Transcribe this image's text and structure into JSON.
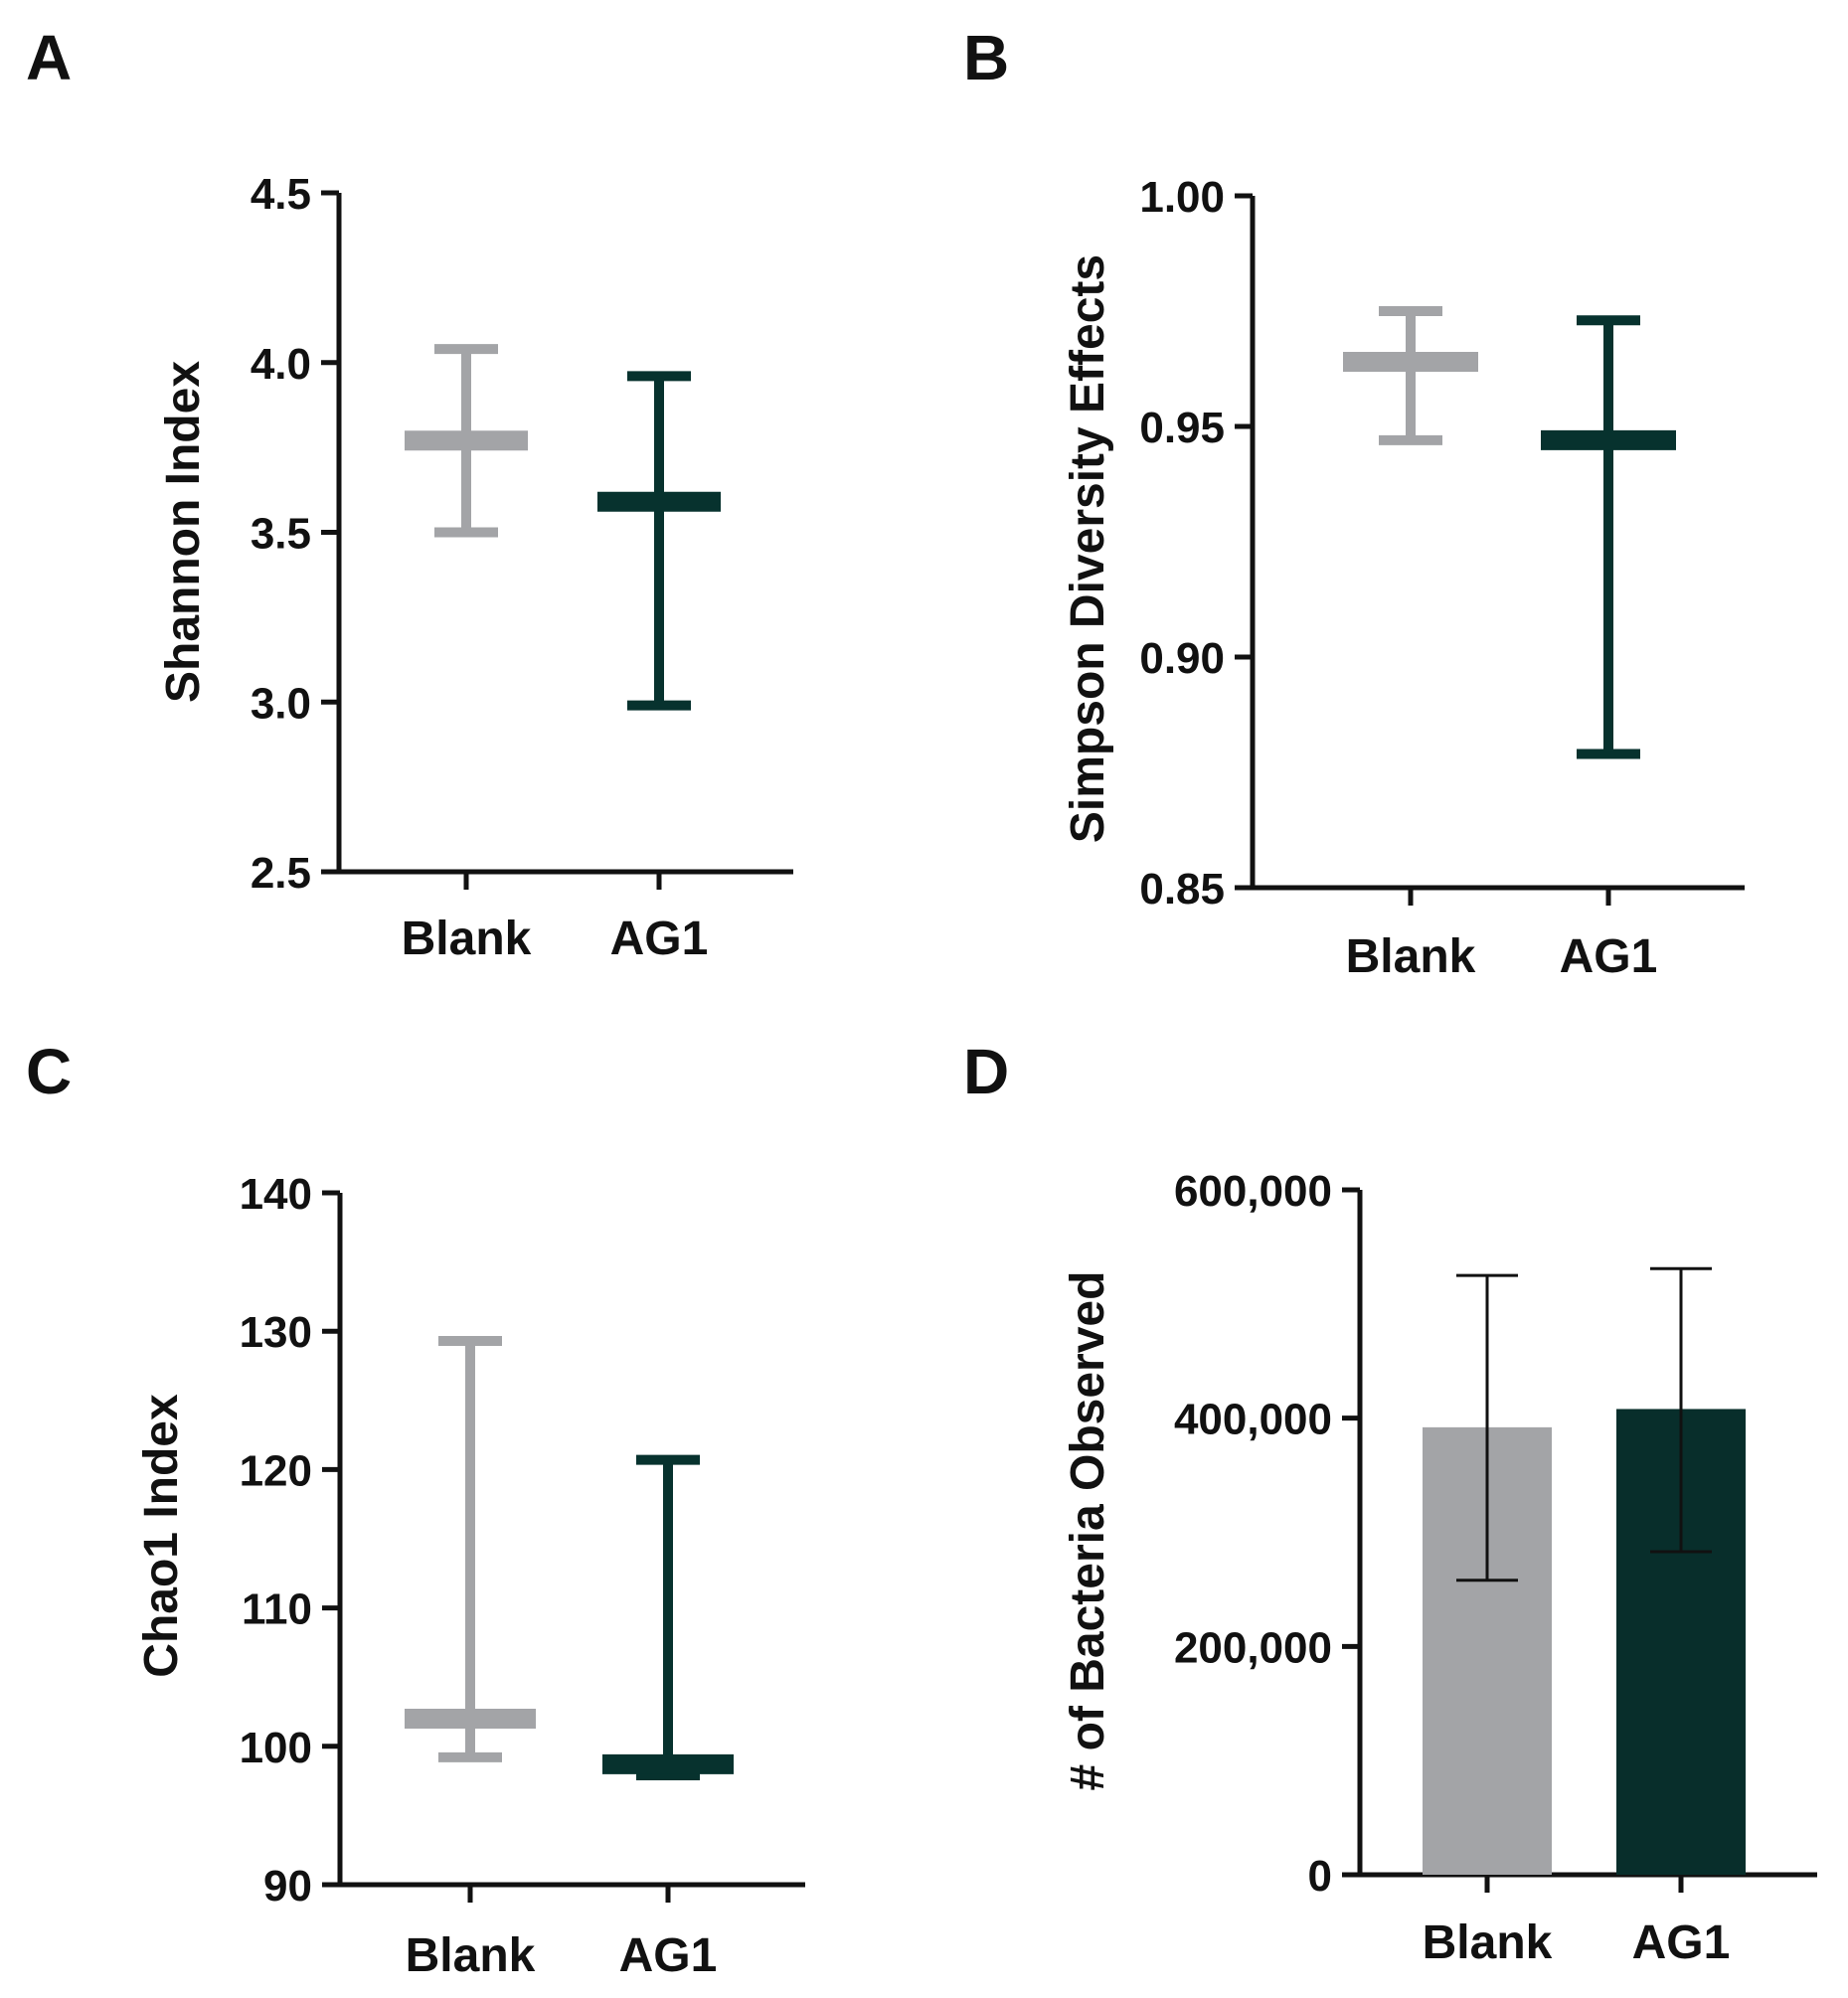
{
  "chart_data": [
    {
      "panel": "A",
      "type": "floating-bar",
      "ylabel": "Shannon Index",
      "categories": [
        "Blank",
        "AG1"
      ],
      "ylim": [
        2.5,
        4.5
      ],
      "yticks": [
        "4.5",
        "4.0",
        "3.5",
        "3.0",
        "2.5"
      ],
      "ytick_values": [
        4.5,
        4.0,
        3.5,
        3.0,
        2.5
      ],
      "series": [
        {
          "name": "Blank",
          "min": 3.5,
          "max": 4.04,
          "mean": 3.77,
          "color": "#a3a4a7"
        },
        {
          "name": "AG1",
          "min": 2.99,
          "max": 3.96,
          "mean": 3.59,
          "color": "#07322e"
        }
      ]
    },
    {
      "panel": "B",
      "type": "floating-bar",
      "ylabel": "Simpson Diversity Effects",
      "categories": [
        "Blank",
        "AG1"
      ],
      "ylim": [
        0.85,
        1.0
      ],
      "yticks": [
        "1.00",
        "0.95",
        "0.90",
        "0.85"
      ],
      "ytick_values": [
        1.0,
        0.95,
        0.9,
        0.85
      ],
      "series": [
        {
          "name": "Blank",
          "min": 0.947,
          "max": 0.975,
          "mean": 0.964,
          "color": "#a3a4a7"
        },
        {
          "name": "AG1",
          "min": 0.879,
          "max": 0.973,
          "mean": 0.947,
          "color": "#07322e"
        }
      ]
    },
    {
      "panel": "C",
      "type": "floating-bar",
      "ylabel": "Chao1 Index",
      "categories": [
        "Blank",
        "AG1"
      ],
      "ylim": [
        90,
        140
      ],
      "yticks": [
        "140",
        "130",
        "120",
        "110",
        "100",
        "90"
      ],
      "ytick_values": [
        140,
        130,
        120,
        110,
        100,
        90
      ],
      "series": [
        {
          "name": "Blank",
          "min": 99.2,
          "max": 129.3,
          "mean": 102.0,
          "color": "#a3a4a7"
        },
        {
          "name": "AG1",
          "min": 97.9,
          "max": 120.7,
          "mean": 98.7,
          "color": "#07322e"
        }
      ]
    },
    {
      "panel": "D",
      "type": "bar",
      "ylabel": "# of Bacteria Observed",
      "categories": [
        "Blank",
        "AG1"
      ],
      "ylim": [
        0,
        600000
      ],
      "yticks": [
        "600,000",
        "400,000",
        "200,000",
        "0"
      ],
      "ytick_values": [
        600000,
        400000,
        200000,
        0
      ],
      "series": [
        {
          "name": "Blank",
          "value": 392000,
          "err_low": 258000,
          "err_high": 525000,
          "color": "#a3a4a7"
        },
        {
          "name": "AG1",
          "value": 408000,
          "err_low": 283000,
          "err_high": 531000,
          "color": "#082e2b"
        }
      ]
    }
  ]
}
